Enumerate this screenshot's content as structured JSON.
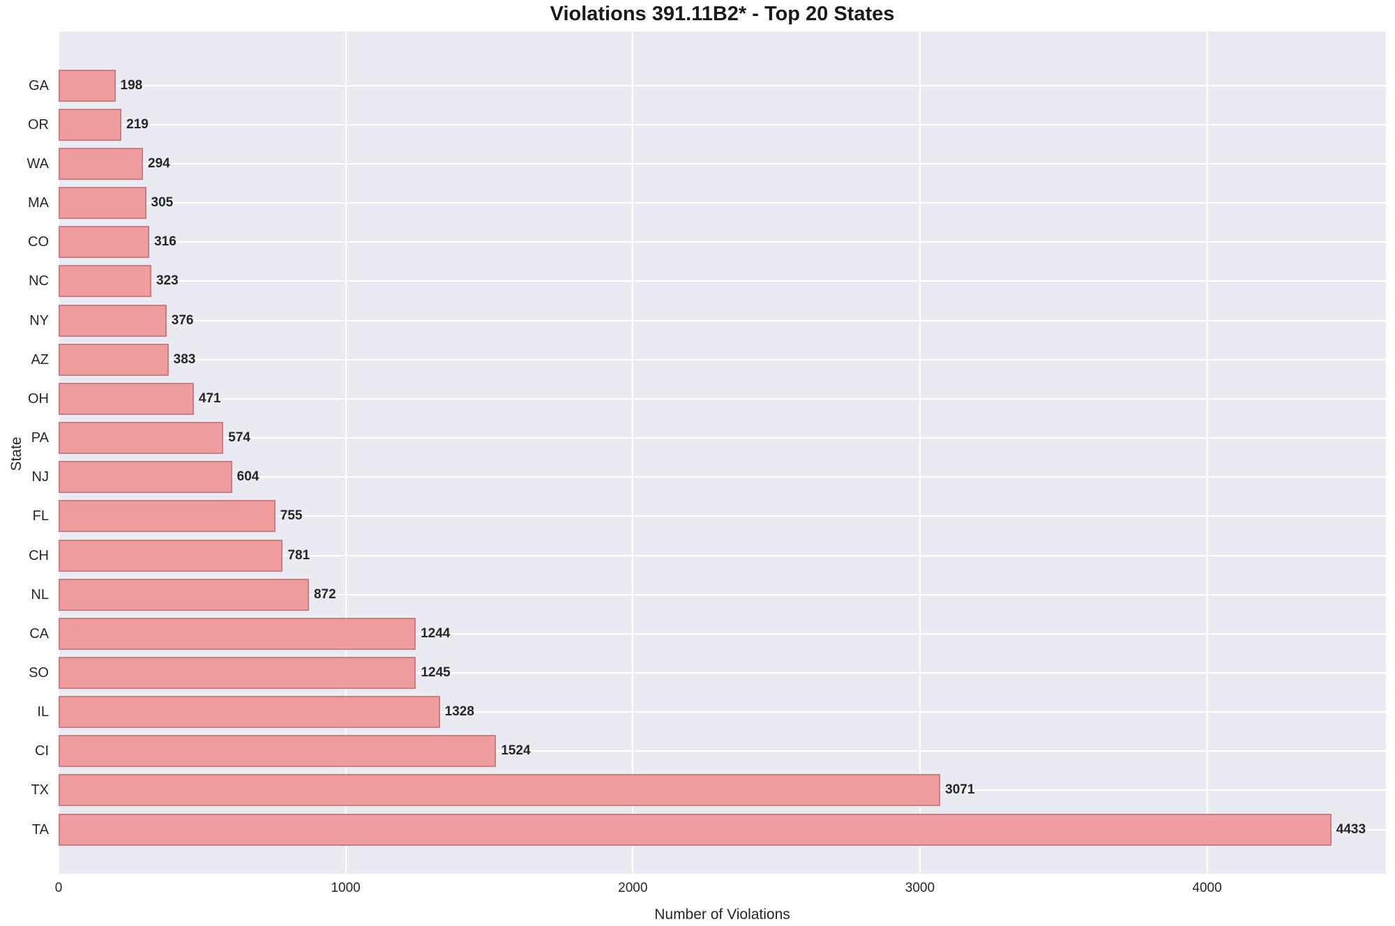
{
  "title": "Violations 391.11B2* - Top 20 States",
  "chart_data": {
    "type": "bar",
    "orientation": "horizontal",
    "title": "Violations 391.11B2* - Top 20 States",
    "xlabel": "Number of Violations",
    "ylabel": "State",
    "categories": [
      "GA",
      "OR",
      "WA",
      "MA",
      "CO",
      "NC",
      "NY",
      "AZ",
      "OH",
      "PA",
      "NJ",
      "FL",
      "CH",
      "NL",
      "CA",
      "SO",
      "IL",
      "CI",
      "TX",
      "TA"
    ],
    "values": [
      198,
      219,
      294,
      305,
      316,
      323,
      376,
      383,
      471,
      574,
      604,
      755,
      781,
      872,
      1244,
      1245,
      1328,
      1524,
      3071,
      4433
    ],
    "value_labels": [
      "198",
      "219",
      "294",
      "305",
      "316",
      "323",
      "376",
      "383",
      "471",
      "574",
      "604",
      "755",
      "781",
      "872",
      "1244",
      "1245",
      "1328",
      "1524",
      "3071",
      "4433"
    ],
    "xticks": [
      0,
      1000,
      2000,
      3000,
      4000
    ],
    "xtick_labels": [
      "0",
      "1000",
      "2000",
      "3000",
      "4000"
    ],
    "xlim": [
      0,
      4623
    ],
    "grid": true,
    "legend": false,
    "colors": {
      "bar_fill": "#f09da0",
      "bar_edge": "#c87f84",
      "plot_bg": "#eaeaf2",
      "grid_line": "#ffffff",
      "text": "#262626",
      "title_text": "#1a1a1a"
    }
  }
}
